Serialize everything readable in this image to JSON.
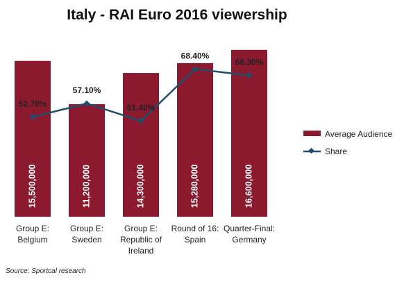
{
  "chart_data": {
    "type": "bar",
    "title": "Italy - RAI Euro 2016 viewership",
    "categories": [
      [
        "Group E:",
        "Belgium"
      ],
      [
        "Group E:",
        "Sweden"
      ],
      [
        "Group E:",
        "Republic of",
        "Ireland"
      ],
      [
        "Round of 16:",
        "Spain"
      ],
      [
        "Quarter-Final:",
        "Germany"
      ]
    ],
    "series": [
      {
        "name": "Average Audience",
        "type": "bar",
        "values": [
          15500000,
          11200000,
          14300000,
          15280000,
          16600000
        ],
        "labels": [
          "15,500,000",
          "11,200,000",
          "14,300,000",
          "15,280,000",
          "16,600,000"
        ],
        "color": "#8B1A2F"
      },
      {
        "name": "Share",
        "type": "line",
        "values": [
          52.7,
          57.1,
          51.4,
          68.4,
          66.3
        ],
        "labels": [
          "52.70%",
          "57.10%",
          "51.40%",
          "68.40%",
          "66.30%"
        ],
        "color": "#1F4E6B"
      }
    ],
    "legend_position": "right",
    "grid": false,
    "bar_ylim": [
      0,
      17000000
    ],
    "share_ylim": [
      20,
      76
    ]
  },
  "source": "Source: Sportcal research"
}
